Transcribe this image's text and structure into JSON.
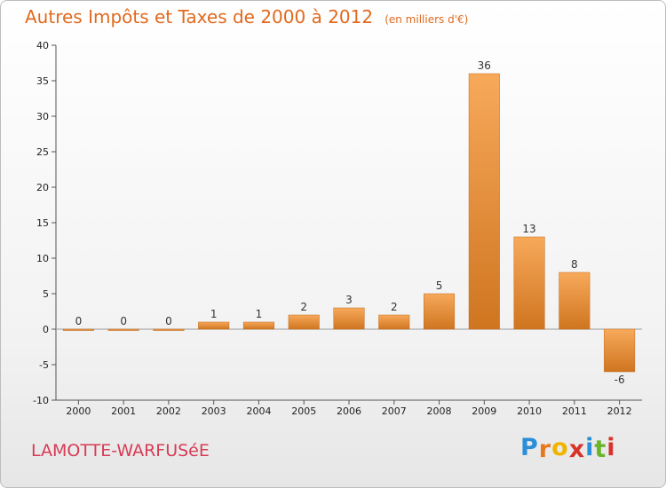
{
  "header": {
    "title": "Autres Impôts et Taxes de 2000 à 2012",
    "subtitle": "(en milliers d'€)"
  },
  "footer": {
    "commune": "LAMOTTE-WARFUSéE",
    "logo_letters": [
      "P",
      "r",
      "o",
      "x",
      "i",
      "t",
      "i"
    ],
    "logo_colors": [
      "#2a8fd8",
      "#e8781e",
      "#f0b400",
      "#d8322a",
      "#2a8fd8",
      "#6ab42a",
      "#d8322a"
    ]
  },
  "colors": {
    "bar_light": "#f7a95a",
    "bar_dark": "#cf7520",
    "title": "#e06a1e",
    "commune": "#d83b55"
  },
  "chart_data": {
    "type": "bar",
    "categories": [
      "2000",
      "2001",
      "2002",
      "2003",
      "2004",
      "2005",
      "2006",
      "2007",
      "2008",
      "2009",
      "2010",
      "2011",
      "2012"
    ],
    "values": [
      0,
      0,
      0,
      1,
      1,
      2,
      3,
      2,
      5,
      36,
      13,
      8,
      -6
    ],
    "data_labels": [
      "0",
      "0",
      "0",
      "1",
      "1",
      "2",
      "3",
      "2",
      "5",
      "36",
      "13",
      "8",
      "-6"
    ],
    "ylim": [
      -10,
      40
    ],
    "yticks": [
      -10,
      -5,
      0,
      5,
      10,
      15,
      20,
      25,
      30,
      35,
      40
    ],
    "title": "Autres Impôts et Taxes de 2000 à 2012",
    "xlabel": "",
    "ylabel": "",
    "grid": false
  }
}
